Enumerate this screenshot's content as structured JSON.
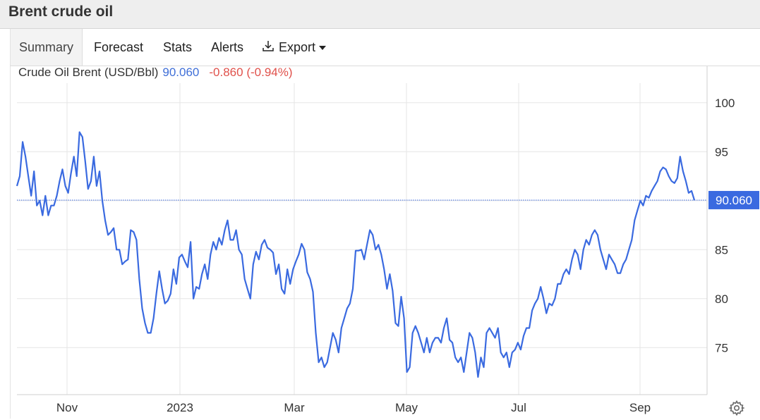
{
  "title": "Brent crude oil",
  "tabs": [
    {
      "label": "Summary",
      "active": true
    },
    {
      "label": "Forecast"
    },
    {
      "label": "Stats"
    },
    {
      "label": "Alerts"
    },
    {
      "label": "Export",
      "icon": "download-icon",
      "dropdown": true
    }
  ],
  "legend": {
    "name": "Crude Oil Brent (USD/Bbl)",
    "value": "90.060",
    "change": "-0.860 (-0.94%)"
  },
  "settings_icon": "gear-icon",
  "colors": {
    "line": "#3a6ae0",
    "badge": "#3a6ae0",
    "grid": "#e6e6e6",
    "negative": "#e0514b"
  },
  "chart_data": {
    "type": "line",
    "xlabel": "",
    "ylabel": "",
    "x_ticks": [
      "Nov",
      "2023",
      "Mar",
      "May",
      "Jul",
      "Sep"
    ],
    "y_ticks": [
      75,
      80,
      85,
      90,
      95,
      100
    ],
    "ylim": [
      70.2,
      102.0
    ],
    "xlim": [
      0,
      135
    ],
    "last_value_label": "90.060",
    "last_value": 90.06,
    "grid": true,
    "series": [
      {
        "values": [
          91.5,
          92.5,
          96.0,
          94.5,
          92.5,
          90.5,
          93.0,
          89.5,
          90.0,
          88.5,
          90.5,
          88.5,
          89.5,
          89.5,
          90.5,
          92.0,
          93.2,
          91.5,
          90.8,
          92.8,
          94.5,
          92.5,
          97.0,
          96.5,
          94.0,
          91.2,
          92.0,
          94.5,
          91.5,
          93.0,
          90.0,
          88.0,
          86.5,
          86.8,
          87.2,
          85.0,
          85.0,
          83.5,
          83.8,
          84.0,
          87.0,
          86.8,
          86.0,
          82.0,
          79.0,
          77.5,
          76.5,
          76.5,
          78.0,
          80.5,
          82.8,
          81.0,
          79.5,
          79.8,
          80.5,
          83.0,
          81.5,
          84.2,
          84.5,
          83.8,
          83.2,
          85.8,
          80.0,
          81.2,
          81.0,
          82.5,
          83.5,
          82.0,
          84.5,
          85.8,
          85.0,
          86.2,
          85.5,
          87.0,
          88.0,
          86.0,
          86.0,
          87.0,
          85.0,
          84.5,
          82.0,
          81.0,
          80.0,
          83.5,
          84.8,
          84.0,
          85.5,
          86.0,
          85.2,
          85.0,
          84.7,
          82.5,
          83.5,
          81.0,
          80.5,
          83.0,
          81.5,
          83.0,
          83.8,
          84.5,
          85.6,
          85.0,
          82.7,
          82.0,
          80.7,
          76.5,
          73.5,
          74.0,
          73.0,
          73.5,
          75.0,
          76.5,
          75.8,
          74.5,
          77.0,
          78.0,
          79.0,
          79.5,
          81.0,
          84.9,
          84.9,
          85.0,
          84.0,
          85.5,
          87.0,
          86.5,
          85.0,
          85.5,
          84.5,
          83.0,
          81.0,
          82.5,
          80.8,
          77.5,
          77.2,
          80.2,
          78.0,
          72.5,
          73.0,
          76.5,
          77.2,
          76.5,
          75.5,
          74.5,
          76.0,
          74.5,
          75.5,
          76.0,
          76.0,
          75.5,
          77.0,
          78.0,
          75.8,
          75.5,
          74.0,
          73.5,
          74.0,
          72.5,
          74.5,
          76.5,
          76.0,
          74.5,
          72.0,
          74.0,
          73.0,
          76.5,
          77.0,
          76.5,
          76.0,
          77.0,
          74.5,
          74.0,
          74.5,
          73.0,
          74.5,
          74.8,
          75.5,
          74.8,
          76.2,
          77.0,
          77.0,
          78.8,
          79.5,
          80.0,
          81.2,
          80.0,
          78.5,
          79.5,
          79.3,
          80.0,
          81.5,
          81.5,
          82.5,
          83.0,
          82.5,
          84.0,
          85.0,
          84.5,
          83.0,
          85.0,
          86.0,
          85.5,
          86.5,
          87.0,
          86.5,
          85.0,
          84.0,
          83.0,
          84.5,
          84.0,
          83.5,
          82.6,
          82.6,
          83.5,
          84.0,
          85.0,
          86.0,
          88.0,
          89.0,
          90.0,
          89.5,
          90.5,
          90.3,
          91.0,
          91.5,
          92.0,
          93.0,
          93.4,
          93.2,
          92.5,
          92.0,
          91.8,
          92.3,
          94.5,
          93.0,
          92.0,
          90.8,
          91.0,
          90.06
        ]
      }
    ]
  }
}
